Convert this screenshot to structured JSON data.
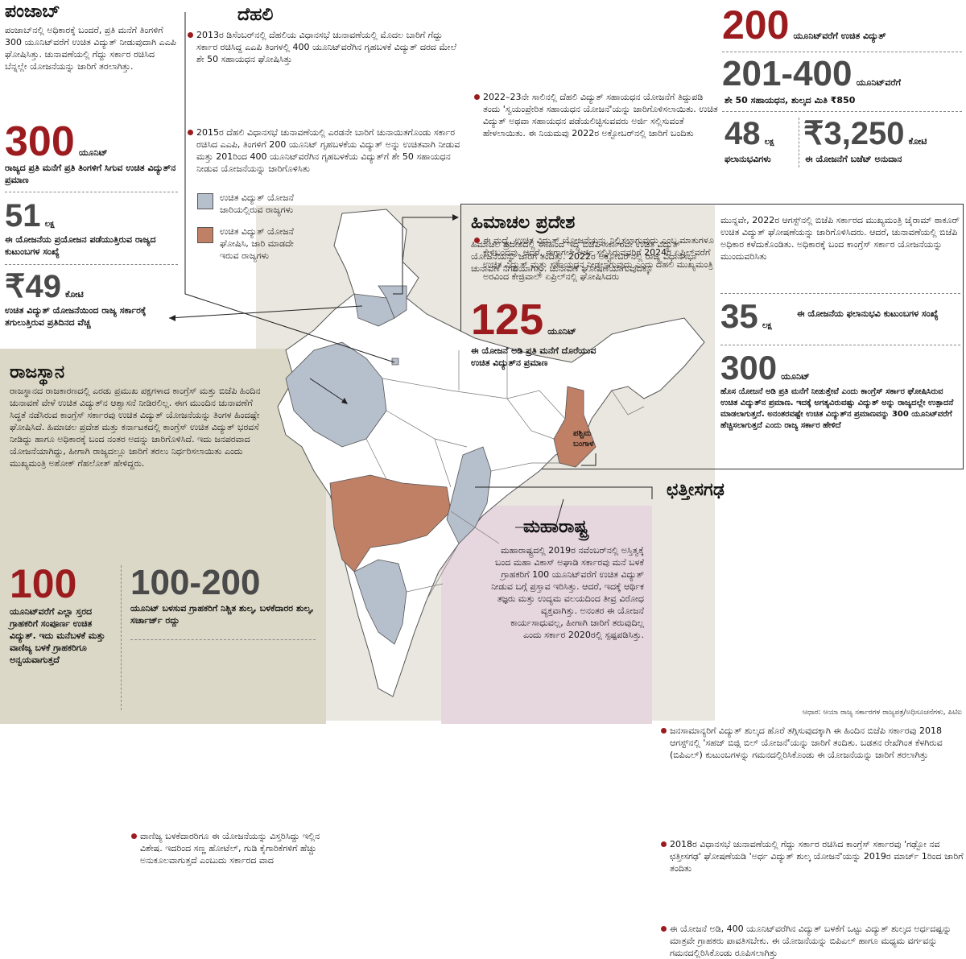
{
  "colors": {
    "accent_red": "#9b1b1e",
    "state_blue": "#b6bfcc",
    "state_brown": "#c08066",
    "panel_khaki": "#dcd8c7",
    "panel_pink": "#e6d7df",
    "map_bg": "#e9e7df"
  },
  "punjab": {
    "title": "ಪಂಜಾಬ್",
    "body": "ಪಂಜಾಬ್‌ನಲ್ಲಿ ಅಧಿಕಾರಕ್ಕೆ ಬಂದರೆ, ಪ್ರತಿ ಮನೆಗೆ ತಿಂಗಳಿಗೆ 300 ಯೂನಿಟ್‌ವರೆಗೆ ಉಚಿತ ವಿದ್ಯುತ್ ನೀಡುವುದಾಗಿ ಎಎಪಿ ಘೋಷಿಸಿತ್ತು. ಚುನಾವಣೆಯಲ್ಲಿ ಗೆದ್ದು ಸರ್ಕಾರ ರಚಿಸಿದ ಬೆನ್ನಲ್ಲೇ ಯೋಜನೆಯನ್ನು ಜಾರಿಗೆ ತರಲಾಗಿತ್ತು.",
    "stat1_value": "300",
    "stat1_unit": "ಯೂನಿಟ್",
    "stat1_caption": "ರಾಜ್ಯದ ಪ್ರತಿ ಮನೆಗೆ ಪ್ರತಿ ತಿಂಗಳಿಗೆ ಸಿಗುವ ಉಚಿತ ವಿದ್ಯುತ್‌ನ ಪ್ರಮಾಣ",
    "stat2_value": "51",
    "stat2_unit": "ಲಕ್ಷ",
    "stat2_caption": "ಈ ಯೋಜನೆಯ ಪ್ರಯೋಜನ ಪಡೆಯುತ್ತಿರುವ ರಾಜ್ಯದ ಕುಟುಂಬಗಳ ಸಂಖ್ಯೆ",
    "stat3_value": "₹49",
    "stat3_unit": "ಕೋಟಿ",
    "stat3_caption": "ಉಚಿತ ವಿದ್ಯುತ್ ಯೋಜನೆಯಿಂದ ರಾಜ್ಯ ಸರ್ಕಾರಕ್ಕೆ ತಗುಲುತ್ತಿರುವ ಪ್ರತಿದಿನದ ವೆಚ್ಚ"
  },
  "delhi": {
    "title": "ದೆಹಲಿ",
    "bullet1": "2013ರ ಡಿಸೆಂಬರ್‌ನಲ್ಲಿ ದೆಹಲಿಯ ವಿಧಾನಸಭೆ ಚುನಾವಣೆಯಲ್ಲಿ ಮೊದಲ ಬಾರಿಗೆ ಗೆದ್ದು ಸರ್ಕಾರ ರಚಿಸಿದ್ದ ಎಎಪಿ ತಿಂಗಳಲ್ಲಿ 400 ಯೂನಿಟ್‌ವರೆಗಿನ ಗೃಹಬಳಕೆ ವಿದ್ಯುತ್ ದರದ ಮೇಲೆ ಶೇ 50 ಸಹಾಯಧನ ಘೋಷಿಸಿತ್ತು",
    "bullet2": "2015ರ ದೆಹಲಿ ವಿಧಾನಸಭೆ ಚುನಾವಣೆಯಲ್ಲಿ ಎರಡನೇ ಬಾರಿಗೆ ಚುನಾಯಿತಗೊಂಡು ಸರ್ಕಾರ ರಚಿಸಿದ ಎಎಪಿ, ತಿಂಗಳಿಗೆ 200 ಯೂನಿಟ್ ಗೃಹಬಳಕೆಯ ವಿದ್ಯುತ್ ಅನ್ನು ಉಚಿತವಾಗಿ ನೀಡುವ ಮತ್ತು 201ರಿಂದ 400 ಯೂನಿಟ್‌ವರೆಗಿನ ಗೃಹಬಳಕೆಯ ವಿದ್ಯುತ್‌ಗೆ ಶೇ 50 ಸಹಾಯಧನ ನೀಡುವ ಯೋಜನೆಯನ್ನು ಜಾರಿಗೊಳಿಸಿತು",
    "bullet3": "2022–23ನೇ ಸಾಲಿನಲ್ಲಿ ದೆಹಲಿ ವಿದ್ಯುತ್ ಸಹಾಯಧನ ಯೋಜನೆಗೆ ತಿದ್ದುಪಡಿ ತಂದು 'ಸ್ವಯಂಪ್ರೇರಿತ ಸಹಾಯಧನ ಯೋಜನೆ'ಯನ್ನು ಜಾರಿಗೊಳಿಸಲಾಯಿತು. ಉಚಿತ ವಿದ್ಯುತ್ ಅಥವಾ ಸಹಾಯಧನ ಪಡೆಯಲಿಚ್ಛಿಸುವವರು ಅರ್ಜಿ ಸಲ್ಲಿಸುವಂತೆ ಹೇಳಲಾಯಿತು. ಈ ನಿಯಮವು 2022ರ ಅಕ್ಟೋಬರ್‌ನಲ್ಲಿ ಜಾರಿಗೆ ಬಂದಿತು",
    "bullet4": "ಈ ಮಧ್ಯೆ, ಉಚಿತ ವಿದ್ಯುತ್ ಯೋಜನೆಯನ್ನು ನಿಲ್ಲಿಸಲಾಗುವುದು ಎಂಬ ಮಾತುಗಳೂ ಕೇಳಿಬಂದವು. ಆದರೆ, ಈಗಾಗಲೇ ಅರ್ಜಿ ಸಲ್ಲಿಸಿರುವವರಿಗೆ 2024ರ ಏಪ್ರಿಲ್‌ವರೆಗೆ ಉಚಿತ ವಿದ್ಯುತ್ ಮತ್ತು ಸಹಾಯಧನ ನೀಡಲಾಗುವುದು ಎಂದು ದೆಹಲಿ ಮುಖ್ಯಮಂತ್ರಿ ಅರವಿಂದ ಕೇಜ್ರಿವಾಲ್ ಏಪ್ರಿಲ್‌ನಲ್ಲಿ ಘೋಷಿಸಿದರು",
    "stat1_value": "200",
    "stat1_unit": "ಯೂನಿಟ್‌ವರೆಗೆ ಉಚಿತ ವಿದ್ಯುತ್",
    "stat2_value": "201-400",
    "stat2_unit": "ಯೂನಿಟ್‌ವರೆಗೆ",
    "stat2_caption": "ಶೇ 50 ಸಹಾಯಧನ, ಶುಲ್ಕದ ಮಿತಿ ₹850",
    "stat3_value": "48",
    "stat3_unit": "ಲಕ್ಷ",
    "stat3_caption": "ಫಲಾನುಭವಿಗಳು",
    "stat4_value": "₹3,250",
    "stat4_unit": "ಕೋಟಿ",
    "stat4_caption": "ಈ ಯೋಜನೆಗೆ ಬಜೆಟ್ ಅನುದಾನ"
  },
  "legend": {
    "item1": "ಉಚಿತ ವಿದ್ಯುತ್ ಯೋಜನೆ ಜಾರಿಯಲ್ಲಿರುವ ರಾಜ್ಯಗಳು",
    "item2": "ಉಚಿತ ವಿದ್ಯುತ್ ಯೋಜನೆ ಘೋಷಿಸಿ, ಜಾರಿ ಮಾಡದೇ ಇರುವ ರಾಜ್ಯಗಳು"
  },
  "himachal": {
    "title": "ಹಿಮಾಚಲ ಪ್ರದೇಶ",
    "body": "ಹಿಮಾಚಲ ಪ್ರದೇಶದಲ್ಲಿ ಈ ಹಿಂದೆ ಇದ್ದ ಬಿಜೆಪಿ ಸರ್ಕಾರವೇ ಉಚಿತ ವಿದ್ಯುತ್ ಯೋಜನೆಯನ್ನು ಜಾರಿಗೆ ತಂದಿತ್ತು. 2022ರ ಅಕ್ಟೋಬರ್‌ನಲ್ಲಿ ರಾಜ್ಯ ವಿಧಾನಸಭಾ ಚುನಾವಣೆ ನಿಗದಿಯಾಗಿತ್ತು. ಚುನಾವಣೆ ಘೋಷಣೆಯಾಗುವುದಕ್ಕೂ",
    "body2": "ಮುನ್ನವೇ, 2022ರ ಆಗಸ್ಟ್‌ನಲ್ಲಿ ಬಿಜೆಪಿ ಸರ್ಕಾರದ ಮುಖ್ಯಮಂತ್ರಿ ಜೈರಾಮ್ ಠಾಕೂರ್ ಉಚಿತ ವಿದ್ಯುತ್ ಘೋಷಣೆಯನ್ನು ಜಾರಿಗೊಳಿಸಿದರು. ಆದರೆ, ಚುನಾವಣೆಯಲ್ಲಿ ಬಿಜೆಪಿ ಅಧಿಕಾರ ಕಳೆದುಕೊಂಡಿತು. ಅಧಿಕಾರಕ್ಕೆ ಬಂದ ಕಾಂಗ್ರೆಸ್ ಸರ್ಕಾರ ಯೋಜನೆಯನ್ನು ಮುಂದುವರಿಸಿತು",
    "stat1_value": "125",
    "stat1_unit": "ಯೂನಿಟ್",
    "stat1_caption": "ಈ ಯೋಜನೆ ಅಡಿ ಪ್ರತಿ ಮನೆಗೆ ದೊರೆಯುವ ಉಚಿತ ವಿದ್ಯುತ್‌ನ ಪ್ರಮಾಣ",
    "stat2_value": "35",
    "stat2_unit": "ಲಕ್ಷ",
    "stat2_caption": "ಈ ಯೋಜನೆಯ ಫಲಾನುಭವಿ ಕುಟುಂಬಗಳ ಸಂಖ್ಯೆ",
    "stat3_value": "300",
    "stat3_unit": "ಯೂನಿಟ್",
    "stat3_caption": "ಹೊಸ ಯೋಜನೆ ಅಡಿ ಪ್ರತಿ ಮನೆಗೆ ನೀಡುತ್ತೇವೆ ಎಂದು ಕಾಂಗ್ರೆಸ್ ಸರ್ಕಾರ ಘೋಷಿಸಿರುವ ಉಚಿತ ವಿದ್ಯುತ್‌ನ ಪ್ರಮಾಣ. ಇದಕ್ಕೆ ಅಗತ್ಯವಿರುವಷ್ಟು ವಿದ್ಯುತ್ ಅನ್ನು ರಾಜ್ಯದಲ್ಲೇ ಉತ್ಪಾದನೆ ಮಾಡಲಾಗುತ್ತದೆ. ಅನಂತರವಷ್ಟೇ ಉಚಿತ ವಿದ್ಯುತ್‌ನ ಪ್ರಮಾಣವನ್ನು 300 ಯೂನಿಟ್‌ವರೆಗೆ ಹೆಚ್ಚಿಸಲಾಗುತ್ತದೆ ಎಂದು ರಾಜ್ಯ ಸರ್ಕಾರ ಹೇಳಿದೆ"
  },
  "rajasthan": {
    "title": "ರಾಜಸ್ಥಾನ",
    "body": "ರಾಜಸ್ಥಾನದ ರಾಜಕಾರಣದಲ್ಲಿ ಎರಡು ಪ್ರಮುಖ ಪಕ್ಷಗಳಾದ ಕಾಂಗ್ರೆಸ್ ಮತ್ತು ಬಿಜೆಪಿ ಹಿಂದಿನ ಚುನಾವಣೆ ವೇಳೆ ಉಚಿತ ವಿದ್ಯುತ್‌ನ ಆಶ್ವಾಸನೆ ನೀಡಿರಲಿಲ್ಲ. ಈಗ ಮುಂದಿನ ಚುನಾವಣೆಗೆ ಸಿದ್ಧತೆ ನಡೆಸಿರುವ ಕಾಂಗ್ರೆಸ್ ಸರ್ಕಾರವು ಉಚಿತ ವಿದ್ಯುತ್ ಯೋಜನೆಯನ್ನು ತಿಂಗಳ ಹಿಂದಷ್ಟೇ ಘೋಷಿಸಿದೆ. ಹಿಮಾಚಲ ಪ್ರದೇಶ ಮತ್ತು ಕರ್ನಾಟಕದಲ್ಲಿ ಕಾಂಗ್ರೆಸ್ ಉಚಿತ ವಿದ್ಯುತ್ ಭರವಸೆ ನೀಡಿದ್ದು ಹಾಗೂ ಅಧಿಕಾರಕ್ಕೆ ಬಂದ ನಂತರ ಅದನ್ನು ಜಾರಿಗೊಳಿಸಿದೆ. ಇದು ಜನಪರವಾದ ಯೋಜನೆಯಾಗಿದ್ದು, ಹೀಗಾಗಿ ರಾಜ್ಯದಲ್ಲೂ ಜಾರಿಗೆ ತರಲು ನಿರ್ಧರಿಸಲಾಯಿತು ಎಂದು ಮುಖ್ಯಮಂತ್ರಿ ಅಶೋಕ್ ಗೆಹಲೋತ್ ಹೇಳಿದ್ದರು.",
    "stat1_value": "100",
    "stat1_caption": "ಯೂನಿಟ್‌ವರೆಗೆ ಎಲ್ಲಾ ಸ್ತರದ ಗ್ರಾಹಕರಿಗೆ ಸಂಪೂರ್ಣ ಉಚಿತ ವಿದ್ಯುತ್. ಇದು ಮನೆಬಳಕೆ ಮತ್ತು ವಾಣಿಜ್ಯ ಬಳಕೆ ಗ್ರಾಹಕರಿಗೂ ಅನ್ವಯವಾಗುತ್ತದೆ",
    "stat2_value": "100-200",
    "stat2_caption": "ಯೂನಿಟ್ ಬಳಸುವ ಗ್ರಾಹಕರಿಗೆ ನಿಶ್ಚಿತ ಶುಲ್ಕ, ಬಳಕೆದಾರರ ಶುಲ್ಕ, ಸರ್ಚಾರ್ಜ್ ರದ್ದು",
    "note": "ವಾಣಿಜ್ಯ ಬಳಕೆದಾರರಿಗೂ ಈ ಯೋಜನೆಯನ್ನು ವಿಸ್ತರಿಸಿದ್ದು ಇಲ್ಲಿನ ವಿಶೇಷ. ಇದರಿಂದ ಸಣ್ಣ ಹೋಟೆಲ್, ಗುಡಿ ಕೈಗಾರಿಕೆಗಳಿಗೆ ಹೆಚ್ಚು ಅನುಕೂಲವಾಗುತ್ತದೆ ಎಂಬುದು ಸರ್ಕಾರದ ವಾದ"
  },
  "maharashtra": {
    "title": "ಮಹಾರಾಷ್ಟ್ರ",
    "body": "ಮಹಾರಾಷ್ಟ್ರದಲ್ಲಿ 2019ರ ನವೆಂಬರ್‌ನಲ್ಲಿ ಅಸ್ತಿತ್ವಕ್ಕೆ ಬಂದ ಮಹಾ ವಿಕಾಸ್ ಅಘಾಡಿ ಸರ್ಕಾರವು ಮನೆ ಬಳಕೆ ಗ್ರಾಹಕರಿಗೆ 100 ಯೂನಿಟ್‌ವರೆಗೆ ಉಚಿತ ವಿದ್ಯುತ್ ನೀಡುವ ಬಗ್ಗೆ ಪ್ರಸ್ತಾವ ಇರಿಸಿತ್ತು. ಆದರೆ, ಇದಕ್ಕೆ ಆರ್ಥಿಕ ತಜ್ಞರು ಮತ್ತು ಉದ್ಯಮ ವಲಯದಿಂದ ತೀವ್ರ ವಿರೋಧ ವ್ಯಕ್ತವಾಗಿತ್ತು. ಅನಂತರ ಈ ಯೋಜನೆ ಕಾರ್ಯಸಾಧುವಲ್ಲ, ಹೀಗಾಗಿ ಜಾರಿಗೆ ತರುವುದಿಲ್ಲ ಎಂದು ಸರ್ಕಾರ 2020ರಲ್ಲಿ ಸ್ಪಷ್ಟಪಡಿಸಿತ್ತು."
  },
  "bengal_label": "ಪಶ್ಚಿಮ ಬಂಗಾಳ",
  "chhattisgarh": {
    "title": "ಛತ್ತೀಸಗಢ",
    "bullet1": "ಜನಸಾಮಾನ್ಯರಿಗೆ ವಿದ್ಯುತ್ ಶುಲ್ಕದ ಹೊರೆ ತಗ್ಗಿಸುವುದಕ್ಕಾಗಿ ಈ ಹಿಂದಿನ ಬಿಜೆಪಿ ಸರ್ಕಾರವು 2018 ಆಗಸ್ಟ್‌ನಲ್ಲಿ 'ಸಹಜ್ ಬಿಜ್ಲಿ ಬಿಲ್ ಯೋಜನೆ'ಯನ್ನು ಜಾರಿಗೆ ತಂದಿತು. ಬಡತನ ರೇಖೆಗಿಂತ ಕೆಳಗಿರುವ (ಬಿಪಿಎಲ್) ಕುಟುಂಬಗಳನ್ನು ಗಮನದಲ್ಲಿರಿಸಿಕೊಂಡು ಈ ಯೋಜನೆಯನ್ನು ಜಾರಿಗೆ ತರಲಾಗಿತ್ತು",
    "bullet2": "2018ರ ವಿಧಾನಸಭೆ ಚುನಾವಣೆಯಲ್ಲಿ ಗೆದ್ದು ಸರ್ಕಾರ ರಚಿಸಿದ ಕಾಂಗ್ರೆಸ್ ಸರ್ಕಾರವು 'ಗಢ್ಬೋ ನವ ಛತ್ತೀಸಗಢ' ಘೋಷಣೆಯಡಿ 'ಅರ್ಧ ವಿದ್ಯುತ್ ಶುಲ್ಕ ಯೋಜನೆ'ಯನ್ನು 2019ರ ಮಾರ್ಚ್ 1ರಿಂದ ಜಾರಿಗೆ ತಂದಿತು",
    "bullet3": "ಈ ಯೋಜನೆ ಅಡಿ, 400 ಯೂನಿಟ್‌ವರೆಗಿನ ವಿದ್ಯುತ್ ಬಳಕೆಗೆ ಒಟ್ಟು ವಿದ್ಯುತ್ ಶುಲ್ಕದ ಅರ್ಧದಷ್ಟನ್ನು ಮಾತ್ರವೇ ಗ್ರಾಹಕರು ಪಾವತಿಸಬೇಕು. ಈ ಯೋಜನೆಯನ್ನು ಬಿಪಿಎಲ್ ಹಾಗೂ ಮಧ್ಯಮ ವರ್ಗವನ್ನು ಗಮನದಲ್ಲಿರಿಸಿಕೊಂಡು ರೂಪಿಸಲಾಗಿತ್ತು"
  },
  "source": "ಆಧಾರ: ಆಯಾ ರಾಜ್ಯ ಸರ್ಕಾರಗಳ ರಾಜ್ಯಪತ್ರ/ಅಧಿಸೂಚನೆಗಳು, ಪಿಟಿಐ"
}
